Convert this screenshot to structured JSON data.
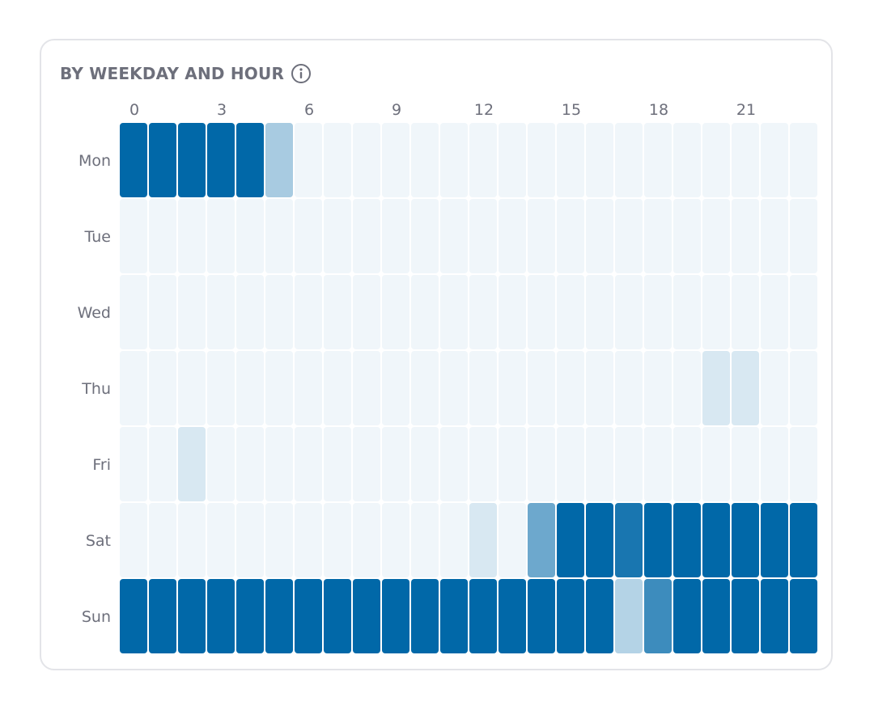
{
  "card": {
    "title": "BY WEEKDAY AND HOUR",
    "info_icon": "info-circle-icon"
  },
  "colors": {
    "scale_low": "#f0f6fa",
    "scale_high": "#0168a8",
    "label": "#6d6f7b",
    "border": "#e3e4e8"
  },
  "chart_data": {
    "type": "heatmap",
    "title": "BY WEEKDAY AND HOUR",
    "x_tick_labels": [
      "0",
      "3",
      "6",
      "9",
      "12",
      "15",
      "18",
      "21"
    ],
    "x_tick_hours": [
      0,
      3,
      6,
      9,
      12,
      15,
      18,
      21
    ],
    "hours": [
      0,
      1,
      2,
      3,
      4,
      5,
      6,
      7,
      8,
      9,
      10,
      11,
      12,
      13,
      14,
      15,
      16,
      17,
      18,
      19,
      20,
      21,
      22,
      23
    ],
    "rows": [
      {
        "label": "Mon",
        "values": [
          1,
          1,
          1,
          1,
          1,
          0.3,
          0,
          0,
          0,
          0,
          0,
          0,
          0,
          0,
          0,
          0,
          0,
          0,
          0,
          0,
          0,
          0,
          0,
          0
        ]
      },
      {
        "label": "Tue",
        "values": [
          0,
          0,
          0,
          0,
          0,
          0,
          0,
          0,
          0,
          0,
          0,
          0,
          0,
          0,
          0,
          0,
          0,
          0,
          0,
          0,
          0,
          0,
          0,
          0
        ]
      },
      {
        "label": "Wed",
        "values": [
          0,
          0,
          0,
          0,
          0,
          0,
          0,
          0,
          0,
          0,
          0,
          0,
          0,
          0,
          0,
          0,
          0,
          0,
          0,
          0,
          0,
          0,
          0,
          0
        ]
      },
      {
        "label": "Thu",
        "values": [
          0,
          0,
          0,
          0,
          0,
          0,
          0,
          0,
          0,
          0,
          0,
          0,
          0,
          0,
          0,
          0,
          0,
          0,
          0,
          0,
          0.1,
          0.1,
          0,
          0
        ]
      },
      {
        "label": "Fri",
        "values": [
          0,
          0,
          0.1,
          0,
          0,
          0,
          0,
          0,
          0,
          0,
          0,
          0,
          0,
          0,
          0,
          0,
          0,
          0,
          0,
          0,
          0,
          0,
          0,
          0
        ]
      },
      {
        "label": "Sat",
        "values": [
          0,
          0,
          0,
          0,
          0,
          0,
          0,
          0,
          0,
          0,
          0,
          0,
          0.1,
          0,
          0.55,
          1,
          1,
          0.9,
          1,
          1,
          1,
          1,
          1,
          1
        ]
      },
      {
        "label": "Sun",
        "values": [
          1,
          1,
          1,
          1,
          1,
          1,
          1,
          1,
          1,
          1,
          1,
          1,
          1,
          1,
          1,
          1,
          1,
          0.25,
          0.75,
          1,
          1,
          1,
          1,
          1
        ]
      }
    ]
  }
}
